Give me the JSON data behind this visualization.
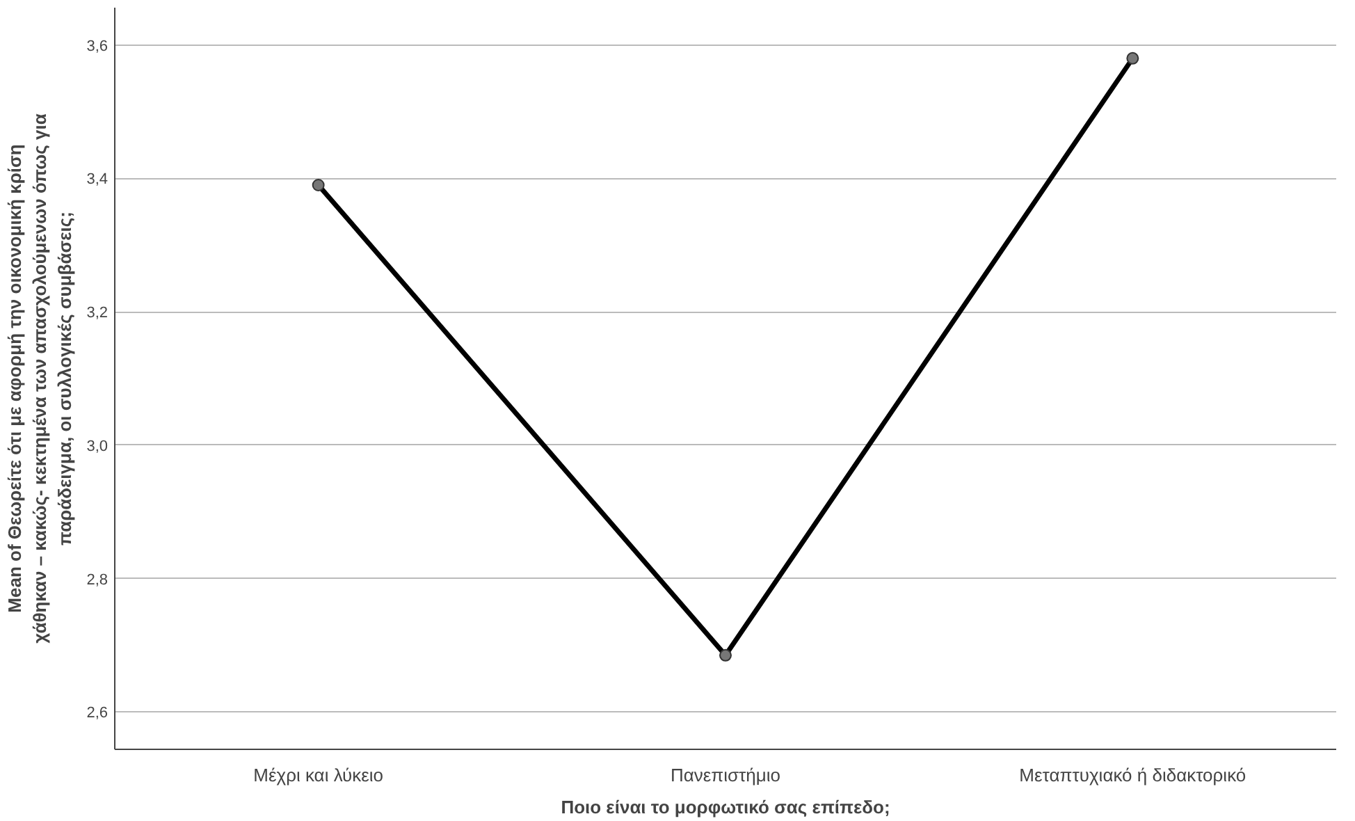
{
  "chart_data": {
    "type": "line",
    "xlabel": "Ποιο είναι το μορφωτικό σας επίπεδο;",
    "ylabel": "Mean of Θεωρείτε ότι με αφορμή την οικονομική κρίση χάθηκαν – κακώς- κεκτημένα των απασχολούμενων όπως για παράδειγμα, οι συλλογικές συμβάσεις;",
    "categories": [
      "Μέχρι και λύκειο",
      "Πανεπιστήμιο",
      "Μεταπτυχιακό ή διδακτορικό"
    ],
    "series": [
      {
        "color": "#000000",
        "values": [
          3.39,
          2.685,
          3.58
        ]
      }
    ],
    "ylim": [
      2.544,
      3.656
    ],
    "yticks": [
      {
        "value": 2.6,
        "label": "2,6"
      },
      {
        "value": 2.8,
        "label": "2,8"
      },
      {
        "value": 3.0,
        "label": "3,0"
      },
      {
        "value": 3.2,
        "label": "3,2"
      },
      {
        "value": 3.4,
        "label": "3,4"
      },
      {
        "value": 3.6,
        "label": "3,6"
      }
    ],
    "grid": "y",
    "marker": "circle",
    "line_style": "solid"
  }
}
